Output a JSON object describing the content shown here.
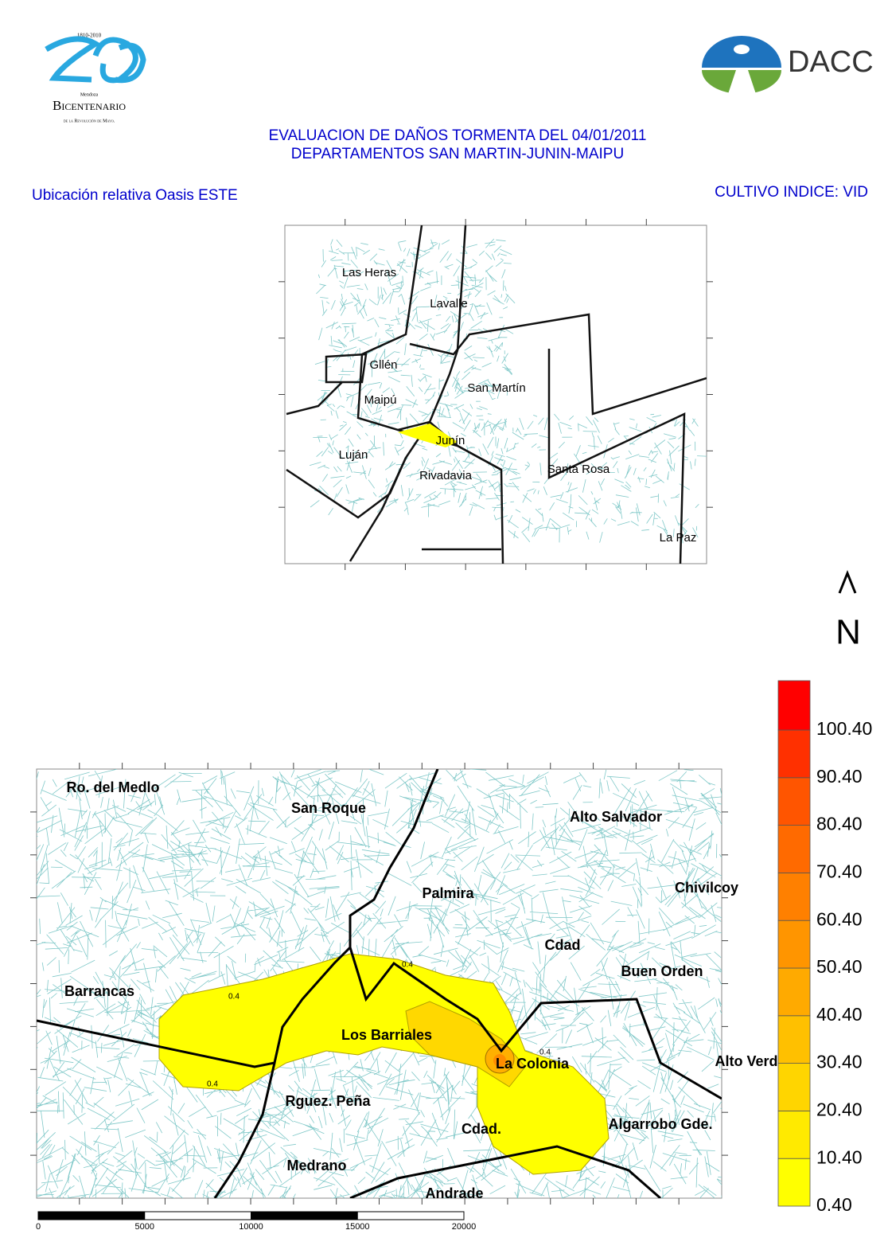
{
  "header": {
    "logo_left": {
      "years": "1810-2010",
      "province": "Mendoza",
      "name": "Bicentenario",
      "subtitle": "de la Revolución de Mayo."
    },
    "logo_right": "DACC",
    "title_lines": [
      "EVALUACION DE DAÑOS TORMENTA DEL 04/01/2011",
      "DEPARTAMENTOS SAN MARTIN-JUNIN-MAIPU"
    ],
    "left_label": "Ubicación relativa Oasis ESTE",
    "right_label": "CULTIVO INDICE: VID"
  },
  "inset_map": {
    "labels": [
      "Las Heras",
      "Lavalle",
      "Gllén",
      "San Martín",
      "Maipú",
      "Junín",
      "Luján",
      "Rivadavia",
      "Santa Rosa",
      "La Paz"
    ]
  },
  "north": "N",
  "main_map": {
    "labels": [
      "Ro. del Medlo",
      "San Roque",
      "Alto Salvador",
      "Palmira",
      "Chivilcoy",
      "Cdad",
      "Buen Orden",
      "Barrancas",
      "Los Barriales",
      "La Colonia",
      "Alto Verde",
      "Rguez. Peña",
      "Cdad.",
      "Algarrobo Gde.",
      "Medrano",
      "Andrade"
    ],
    "contour_label": "0.4"
  },
  "legend": {
    "labels": [
      "0.40",
      "10.40",
      "20.40",
      "30.40",
      "40.40",
      "50.40",
      "60.40",
      "70.40",
      "80.40",
      "90.40",
      "100.40"
    ],
    "colors": [
      "#ffff00",
      "#ffea00",
      "#ffd500",
      "#ffc000",
      "#ffaa00",
      "#ff9500",
      "#ff8000",
      "#ff6a00",
      "#ff5500",
      "#ff3000",
      "#ff0000"
    ]
  },
  "scale_bar": {
    "ticks": [
      0,
      5000,
      10000,
      15000,
      20000
    ]
  }
}
